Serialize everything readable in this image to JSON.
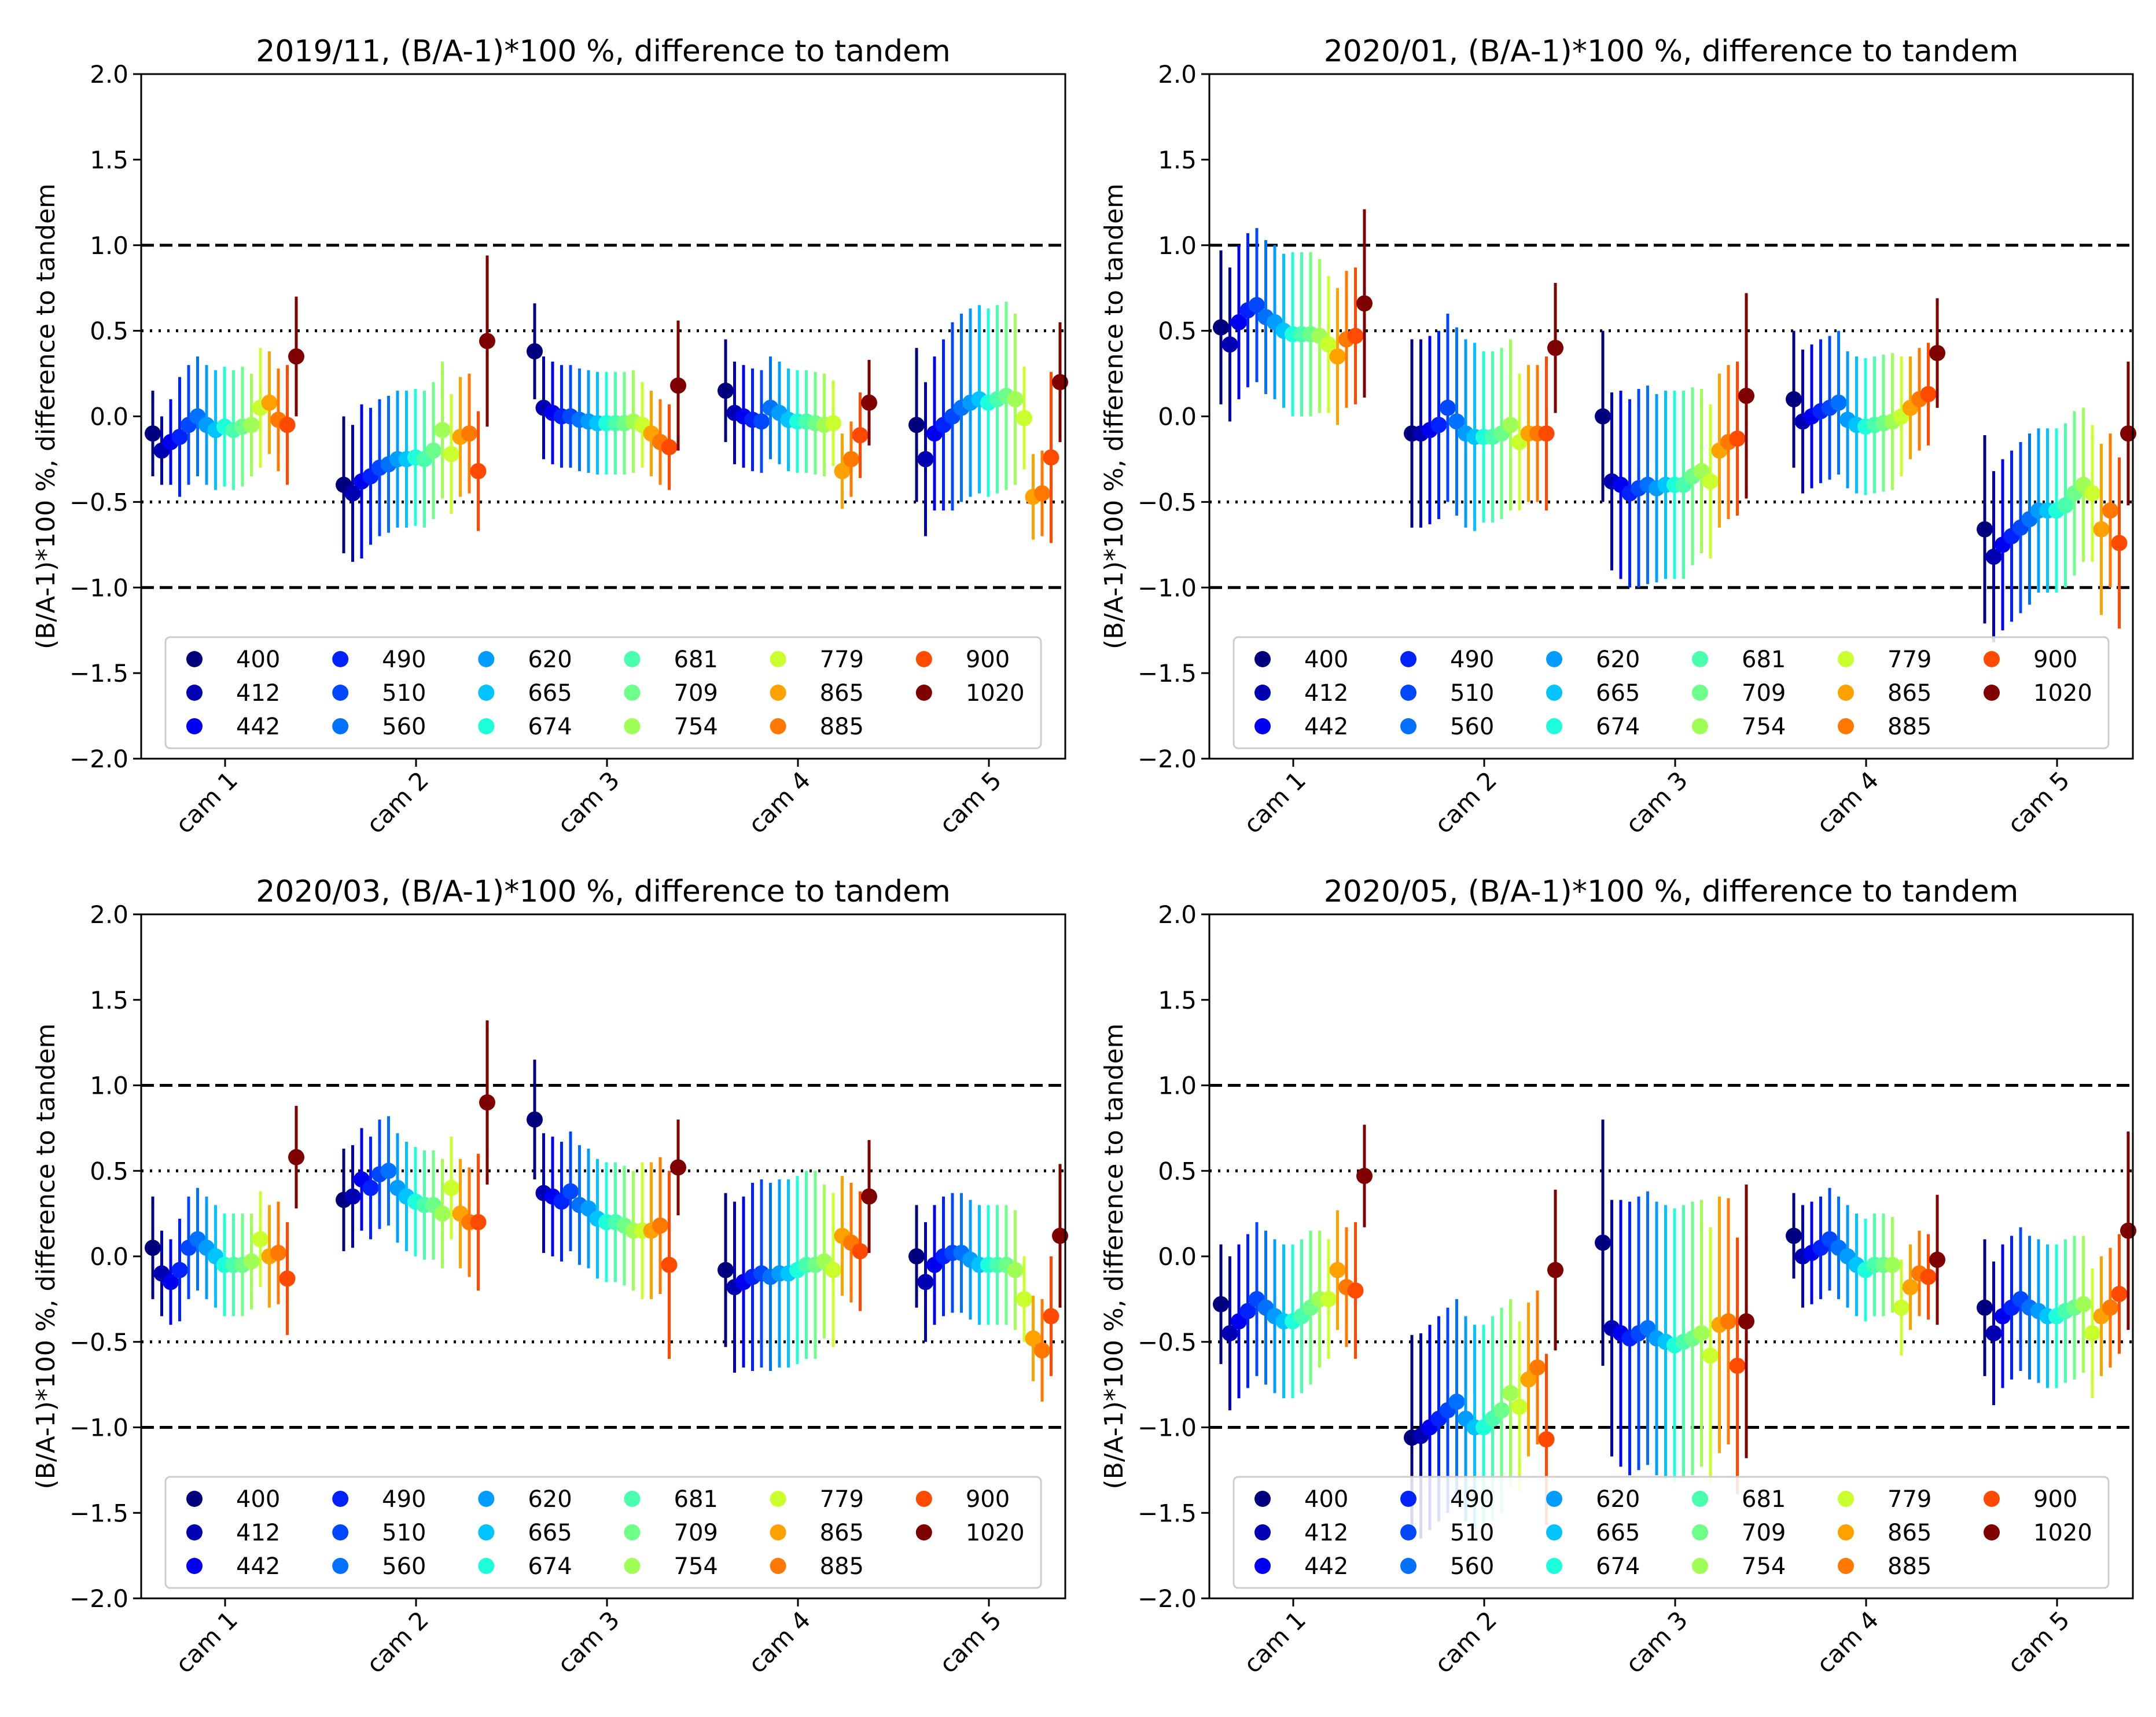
{
  "figure": {
    "series_colors": [
      "#00007f",
      "#0000b2",
      "#0000f1",
      "#0022ff",
      "#0048ff",
      "#0072ff",
      "#009cff",
      "#00c4ff",
      "#1cffda",
      "#49ffad",
      "#6dff8a",
      "#a0ff56",
      "#c9ff2d",
      "#ffa200",
      "#ff7800",
      "#ff4a00",
      "#f10700",
      "#7f0000"
    ]
  },
  "chart_data": [
    {
      "type": "scatter",
      "subtype": "errorbar",
      "title": "2019/11, (B/A-1)*100 %, difference to tandem",
      "xlabel": "",
      "ylabel": "(B/A-1)*100 %, difference to tandem",
      "ylim": [
        -2.0,
        2.0
      ],
      "yticks": [
        "−2.0",
        "−1.5",
        "−1.0",
        "−0.5",
        "0.0",
        "0.5",
        "1.0",
        "1.5",
        "2.0"
      ],
      "categories": [
        "cam 1",
        "cam 2",
        "cam 3",
        "cam 4",
        "cam 5"
      ],
      "reference_lines": [
        {
          "y": 1.0,
          "style": "dashed"
        },
        {
          "y": -1.0,
          "style": "dashed"
        },
        {
          "y": 0.5,
          "style": "dotted"
        },
        {
          "y": -0.5,
          "style": "dotted"
        }
      ],
      "legend_position": "lower center",
      "series_names": [
        "400",
        "412",
        "442",
        "490",
        "510",
        "560",
        "620",
        "665",
        "674",
        "681",
        "709",
        "754",
        "779",
        "865",
        "885",
        "900",
        "1020"
      ],
      "values": [
        [
          -0.1,
          -0.2,
          -0.15,
          -0.12,
          -0.05,
          0.0,
          -0.05,
          -0.08,
          -0.06,
          -0.08,
          -0.06,
          -0.05,
          0.05,
          0.08,
          -0.02,
          -0.05,
          0.35
        ],
        [
          -0.4,
          -0.45,
          -0.38,
          -0.35,
          -0.3,
          -0.28,
          -0.25,
          -0.25,
          -0.24,
          -0.25,
          -0.2,
          -0.08,
          -0.22,
          -0.12,
          -0.1,
          -0.32,
          0.44
        ],
        [
          0.38,
          0.05,
          0.02,
          0.0,
          0.0,
          -0.02,
          -0.03,
          -0.04,
          -0.04,
          -0.04,
          -0.04,
          -0.03,
          -0.05,
          -0.1,
          -0.15,
          -0.18,
          0.18
        ],
        [
          0.15,
          0.02,
          0.0,
          -0.02,
          -0.03,
          0.05,
          0.02,
          -0.02,
          -0.03,
          -0.03,
          -0.04,
          -0.05,
          -0.04,
          -0.32,
          -0.25,
          -0.11,
          0.08
        ],
        [
          -0.05,
          -0.25,
          -0.1,
          -0.05,
          0.0,
          0.05,
          0.08,
          0.1,
          0.08,
          0.1,
          0.12,
          0.1,
          -0.01,
          -0.47,
          -0.45,
          -0.24,
          0.2
        ]
      ],
      "errors": [
        [
          0.25,
          0.2,
          0.25,
          0.35,
          0.35,
          0.35,
          0.35,
          0.35,
          0.35,
          0.35,
          0.35,
          0.3,
          0.35,
          0.3,
          0.3,
          0.35,
          0.35
        ],
        [
          0.4,
          0.4,
          0.45,
          0.4,
          0.4,
          0.4,
          0.4,
          0.4,
          0.4,
          0.4,
          0.4,
          0.4,
          0.35,
          0.35,
          0.35,
          0.35,
          0.5
        ],
        [
          0.28,
          0.3,
          0.3,
          0.3,
          0.3,
          0.3,
          0.3,
          0.3,
          0.3,
          0.3,
          0.3,
          0.3,
          0.25,
          0.25,
          0.25,
          0.25,
          0.38
        ],
        [
          0.3,
          0.3,
          0.3,
          0.3,
          0.3,
          0.3,
          0.3,
          0.3,
          0.3,
          0.3,
          0.3,
          0.3,
          0.25,
          0.22,
          0.22,
          0.25,
          0.25
        ],
        [
          0.45,
          0.45,
          0.45,
          0.5,
          0.55,
          0.55,
          0.55,
          0.55,
          0.55,
          0.55,
          0.55,
          0.5,
          0.3,
          0.25,
          0.25,
          0.5,
          0.35
        ]
      ]
    },
    {
      "type": "scatter",
      "subtype": "errorbar",
      "title": "2020/01, (B/A-1)*100 %, difference to tandem",
      "xlabel": "",
      "ylabel": "(B/A-1)*100 %, difference to tandem",
      "ylim": [
        -2.0,
        2.0
      ],
      "yticks": [
        "−2.0",
        "−1.5",
        "−1.0",
        "−0.5",
        "0.0",
        "0.5",
        "1.0",
        "1.5",
        "2.0"
      ],
      "categories": [
        "cam 1",
        "cam 2",
        "cam 3",
        "cam 4",
        "cam 5"
      ],
      "reference_lines": [
        {
          "y": 1.0,
          "style": "dashed"
        },
        {
          "y": -1.0,
          "style": "dashed"
        },
        {
          "y": 0.5,
          "style": "dotted"
        },
        {
          "y": -0.5,
          "style": "dotted"
        }
      ],
      "legend_position": "lower center",
      "series_names": [
        "400",
        "412",
        "442",
        "490",
        "510",
        "560",
        "620",
        "665",
        "674",
        "681",
        "709",
        "754",
        "779",
        "865",
        "885",
        "900",
        "1020"
      ],
      "values": [
        [
          0.52,
          0.42,
          0.55,
          0.62,
          0.65,
          0.58,
          0.55,
          0.5,
          0.48,
          0.48,
          0.48,
          0.47,
          0.42,
          0.35,
          0.45,
          0.47,
          0.66
        ],
        [
          -0.1,
          -0.1,
          -0.08,
          -0.05,
          0.05,
          -0.03,
          -0.1,
          -0.12,
          -0.12,
          -0.12,
          -0.1,
          -0.05,
          -0.15,
          -0.1,
          -0.1,
          -0.1,
          0.4
        ],
        [
          0.0,
          -0.38,
          -0.4,
          -0.45,
          -0.42,
          -0.4,
          -0.42,
          -0.4,
          -0.4,
          -0.4,
          -0.35,
          -0.32,
          -0.38,
          -0.2,
          -0.15,
          -0.13,
          0.12
        ],
        [
          0.1,
          -0.03,
          0.0,
          0.03,
          0.05,
          0.08,
          -0.02,
          -0.05,
          -0.06,
          -0.05,
          -0.04,
          -0.03,
          0.0,
          0.05,
          0.1,
          0.13,
          0.37
        ],
        [
          -0.66,
          -0.82,
          -0.75,
          -0.7,
          -0.65,
          -0.6,
          -0.55,
          -0.55,
          -0.55,
          -0.52,
          -0.45,
          -0.4,
          -0.45,
          -0.66,
          -0.55,
          -0.74,
          -0.1
        ]
      ],
      "errors": [
        [
          0.45,
          0.45,
          0.45,
          0.45,
          0.45,
          0.45,
          0.45,
          0.45,
          0.48,
          0.48,
          0.48,
          0.45,
          0.4,
          0.4,
          0.4,
          0.4,
          0.55
        ],
        [
          0.55,
          0.55,
          0.55,
          0.55,
          0.55,
          0.55,
          0.55,
          0.55,
          0.5,
          0.5,
          0.5,
          0.5,
          0.4,
          0.4,
          0.4,
          0.45,
          0.38
        ],
        [
          0.5,
          0.52,
          0.55,
          0.55,
          0.58,
          0.58,
          0.55,
          0.55,
          0.55,
          0.55,
          0.52,
          0.48,
          0.45,
          0.45,
          0.45,
          0.45,
          0.6
        ],
        [
          0.4,
          0.42,
          0.42,
          0.42,
          0.42,
          0.42,
          0.4,
          0.4,
          0.4,
          0.4,
          0.4,
          0.4,
          0.35,
          0.3,
          0.3,
          0.3,
          0.32
        ],
        [
          0.55,
          0.5,
          0.5,
          0.5,
          0.5,
          0.5,
          0.48,
          0.48,
          0.48,
          0.48,
          0.48,
          0.45,
          0.4,
          0.5,
          0.45,
          0.5,
          0.42
        ]
      ]
    },
    {
      "type": "scatter",
      "subtype": "errorbar",
      "title": "2020/03, (B/A-1)*100 %, difference to tandem",
      "xlabel": "",
      "ylabel": "(B/A-1)*100 %, difference to tandem",
      "ylim": [
        -2.0,
        2.0
      ],
      "yticks": [
        "−2.0",
        "−1.5",
        "−1.0",
        "−0.5",
        "0.0",
        "0.5",
        "1.0",
        "1.5",
        "2.0"
      ],
      "categories": [
        "cam 1",
        "cam 2",
        "cam 3",
        "cam 4",
        "cam 5"
      ],
      "reference_lines": [
        {
          "y": 1.0,
          "style": "dashed"
        },
        {
          "y": -1.0,
          "style": "dashed"
        },
        {
          "y": 0.5,
          "style": "dotted"
        },
        {
          "y": -0.5,
          "style": "dotted"
        }
      ],
      "legend_position": "lower center",
      "series_names": [
        "400",
        "412",
        "442",
        "490",
        "510",
        "560",
        "620",
        "665",
        "674",
        "681",
        "709",
        "754",
        "779",
        "865",
        "885",
        "900",
        "1020"
      ],
      "values": [
        [
          0.05,
          -0.1,
          -0.15,
          -0.08,
          0.05,
          0.1,
          0.05,
          0.0,
          -0.05,
          -0.05,
          -0.05,
          -0.03,
          0.1,
          0.0,
          0.02,
          -0.13,
          0.58
        ],
        [
          0.33,
          0.35,
          0.45,
          0.4,
          0.48,
          0.5,
          0.4,
          0.35,
          0.32,
          0.3,
          0.3,
          0.25,
          0.4,
          0.25,
          0.2,
          0.2,
          0.9
        ],
        [
          0.8,
          0.37,
          0.35,
          0.32,
          0.38,
          0.3,
          0.28,
          0.22,
          0.2,
          0.2,
          0.18,
          0.15,
          0.15,
          0.15,
          0.18,
          -0.05,
          0.52
        ],
        [
          -0.08,
          -0.18,
          -0.15,
          -0.12,
          -0.1,
          -0.12,
          -0.1,
          -0.1,
          -0.08,
          -0.05,
          -0.05,
          -0.03,
          -0.08,
          0.12,
          0.08,
          0.03,
          0.35
        ],
        [
          0.0,
          -0.15,
          -0.05,
          0.0,
          0.02,
          0.02,
          -0.02,
          -0.05,
          -0.05,
          -0.05,
          -0.05,
          -0.08,
          -0.25,
          -0.48,
          -0.55,
          -0.35,
          0.12
        ]
      ],
      "errors": [
        [
          0.3,
          0.25,
          0.25,
          0.3,
          0.3,
          0.3,
          0.3,
          0.3,
          0.3,
          0.3,
          0.3,
          0.28,
          0.28,
          0.3,
          0.3,
          0.33,
          0.3
        ],
        [
          0.3,
          0.3,
          0.3,
          0.3,
          0.32,
          0.32,
          0.32,
          0.32,
          0.32,
          0.32,
          0.32,
          0.32,
          0.3,
          0.32,
          0.32,
          0.4,
          0.48
        ],
        [
          0.35,
          0.35,
          0.35,
          0.35,
          0.35,
          0.35,
          0.35,
          0.35,
          0.35,
          0.35,
          0.35,
          0.35,
          0.4,
          0.4,
          0.4,
          0.55,
          0.28
        ],
        [
          0.45,
          0.5,
          0.5,
          0.55,
          0.55,
          0.55,
          0.55,
          0.55,
          0.55,
          0.55,
          0.55,
          0.45,
          0.45,
          0.35,
          0.35,
          0.35,
          0.33
        ],
        [
          0.3,
          0.35,
          0.35,
          0.35,
          0.35,
          0.35,
          0.35,
          0.35,
          0.35,
          0.35,
          0.35,
          0.35,
          0.25,
          0.25,
          0.3,
          0.35,
          0.42
        ]
      ]
    },
    {
      "type": "scatter",
      "subtype": "errorbar",
      "title": "2020/05, (B/A-1)*100 %, difference to tandem",
      "xlabel": "",
      "ylabel": "(B/A-1)*100 %, difference to tandem",
      "ylim": [
        -2.0,
        2.0
      ],
      "yticks": [
        "−2.0",
        "−1.5",
        "−1.0",
        "−0.5",
        "0.0",
        "0.5",
        "1.0",
        "1.5",
        "2.0"
      ],
      "categories": [
        "cam 1",
        "cam 2",
        "cam 3",
        "cam 4",
        "cam 5"
      ],
      "reference_lines": [
        {
          "y": 1.0,
          "style": "dashed"
        },
        {
          "y": -1.0,
          "style": "dashed"
        },
        {
          "y": 0.5,
          "style": "dotted"
        },
        {
          "y": -0.5,
          "style": "dotted"
        }
      ],
      "legend_position": "lower center",
      "series_names": [
        "400",
        "412",
        "442",
        "490",
        "510",
        "560",
        "620",
        "665",
        "674",
        "681",
        "709",
        "754",
        "779",
        "865",
        "885",
        "900",
        "1020"
      ],
      "values": [
        [
          -0.28,
          -0.45,
          -0.38,
          -0.32,
          -0.25,
          -0.3,
          -0.35,
          -0.38,
          -0.38,
          -0.35,
          -0.3,
          -0.25,
          -0.25,
          -0.08,
          -0.18,
          -0.2,
          0.47
        ],
        [
          -1.06,
          -1.05,
          -1.0,
          -0.95,
          -0.9,
          -0.85,
          -0.95,
          -1.0,
          -1.0,
          -0.95,
          -0.9,
          -0.8,
          -0.88,
          -0.72,
          -0.65,
          -1.07,
          -0.08
        ],
        [
          0.08,
          -0.42,
          -0.45,
          -0.48,
          -0.45,
          -0.42,
          -0.48,
          -0.5,
          -0.52,
          -0.5,
          -0.48,
          -0.45,
          -0.58,
          -0.4,
          -0.38,
          -0.64,
          -0.38
        ],
        [
          0.12,
          0.0,
          0.02,
          0.05,
          0.1,
          0.05,
          0.0,
          -0.05,
          -0.08,
          -0.05,
          -0.05,
          -0.05,
          -0.3,
          -0.18,
          -0.1,
          -0.12,
          -0.02
        ],
        [
          -0.3,
          -0.45,
          -0.35,
          -0.3,
          -0.25,
          -0.3,
          -0.32,
          -0.35,
          -0.35,
          -0.32,
          -0.3,
          -0.28,
          -0.45,
          -0.35,
          -0.3,
          -0.22,
          0.15
        ]
      ],
      "errors": [
        [
          0.35,
          0.45,
          0.45,
          0.45,
          0.45,
          0.45,
          0.45,
          0.45,
          0.45,
          0.45,
          0.45,
          0.4,
          0.35,
          0.35,
          0.35,
          0.4,
          0.3
        ],
        [
          0.6,
          0.6,
          0.6,
          0.6,
          0.6,
          0.6,
          0.6,
          0.6,
          0.6,
          0.6,
          0.6,
          0.55,
          0.5,
          0.45,
          0.45,
          0.5,
          0.47
        ],
        [
          0.72,
          0.75,
          0.78,
          0.8,
          0.8,
          0.8,
          0.8,
          0.8,
          0.8,
          0.8,
          0.8,
          0.78,
          0.75,
          0.75,
          0.72,
          0.75,
          0.8
        ],
        [
          0.25,
          0.3,
          0.3,
          0.3,
          0.3,
          0.3,
          0.3,
          0.3,
          0.3,
          0.3,
          0.3,
          0.28,
          0.28,
          0.25,
          0.25,
          0.25,
          0.38
        ],
        [
          0.4,
          0.42,
          0.42,
          0.42,
          0.42,
          0.42,
          0.42,
          0.42,
          0.42,
          0.42,
          0.42,
          0.4,
          0.38,
          0.35,
          0.35,
          0.35,
          0.58
        ]
      ]
    }
  ]
}
